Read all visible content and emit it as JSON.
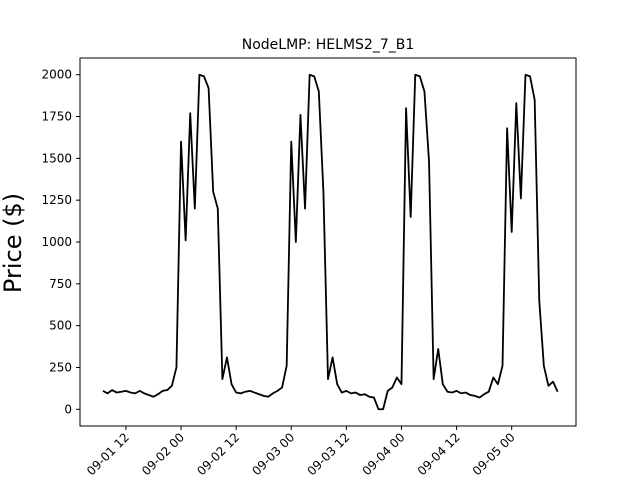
{
  "chart_data": {
    "type": "line",
    "title": "NodeLMP: HELMS2_7_B1",
    "xlabel": "",
    "ylabel": "Price ($)",
    "x_ticks": [
      "09-01 12",
      "09-02 00",
      "09-02 12",
      "09-03 00",
      "09-03 12",
      "09-04 00",
      "09-04 12",
      "09-05 00"
    ],
    "y_ticks": [
      "0",
      "250",
      "500",
      "750",
      "1000",
      "1250",
      "1500",
      "1750",
      "2000"
    ],
    "xlim": [
      "09-01 02",
      "09-05 14"
    ],
    "ylim": [
      -100,
      2100
    ],
    "grid": false,
    "series": [
      {
        "color": "#000000",
        "points": [
          [
            "09-01 07",
            110
          ],
          [
            "09-01 08",
            95
          ],
          [
            "09-01 09",
            115
          ],
          [
            "09-01 10",
            100
          ],
          [
            "09-01 11",
            105
          ],
          [
            "09-01 12",
            110
          ],
          [
            "09-01 13",
            100
          ],
          [
            "09-01 14",
            95
          ],
          [
            "09-01 15",
            110
          ],
          [
            "09-01 16",
            95
          ],
          [
            "09-01 17",
            85
          ],
          [
            "09-01 18",
            75
          ],
          [
            "09-01 19",
            90
          ],
          [
            "09-01 20",
            110
          ],
          [
            "09-01 21",
            115
          ],
          [
            "09-01 22",
            140
          ],
          [
            "09-01 23",
            250
          ],
          [
            "09-01 24",
            1600
          ],
          [
            "09-02 01",
            1010
          ],
          [
            "09-02 02",
            1770
          ],
          [
            "09-02 03",
            1200
          ],
          [
            "09-02 04",
            2000
          ],
          [
            "09-02 05",
            1990
          ],
          [
            "09-02 06",
            1920
          ],
          [
            "09-02 07",
            1300
          ],
          [
            "09-02 08",
            1200
          ],
          [
            "09-02 09",
            180
          ],
          [
            "09-02 10",
            310
          ],
          [
            "09-02 11",
            150
          ],
          [
            "09-02 12",
            100
          ],
          [
            "09-02 13",
            95
          ],
          [
            "09-02 14",
            105
          ],
          [
            "09-02 15",
            110
          ],
          [
            "09-02 16",
            100
          ],
          [
            "09-02 17",
            90
          ],
          [
            "09-02 18",
            80
          ],
          [
            "09-02 19",
            75
          ],
          [
            "09-02 20",
            95
          ],
          [
            "09-02 21",
            110
          ],
          [
            "09-02 22",
            130
          ],
          [
            "09-02 23",
            260
          ],
          [
            "09-02 24",
            1600
          ],
          [
            "09-03 01",
            1000
          ],
          [
            "09-03 02",
            1760
          ],
          [
            "09-03 03",
            1200
          ],
          [
            "09-03 04",
            2000
          ],
          [
            "09-03 05",
            1990
          ],
          [
            "09-03 06",
            1900
          ],
          [
            "09-03 07",
            1300
          ],
          [
            "09-03 08",
            180
          ],
          [
            "09-03 09",
            310
          ],
          [
            "09-03 10",
            150
          ],
          [
            "09-03 11",
            100
          ],
          [
            "09-03 12",
            110
          ],
          [
            "09-03 13",
            95
          ],
          [
            "09-03 14",
            100
          ],
          [
            "09-03 15",
            85
          ],
          [
            "09-03 16",
            90
          ],
          [
            "09-03 17",
            75
          ],
          [
            "09-03 18",
            70
          ],
          [
            "09-03 19",
            0
          ],
          [
            "09-03 20",
            0
          ],
          [
            "09-03 21",
            110
          ],
          [
            "09-03 22",
            130
          ],
          [
            "09-03 23",
            190
          ],
          [
            "09-03 24",
            150
          ],
          [
            "09-04 01",
            1800
          ],
          [
            "09-04 02",
            1150
          ],
          [
            "09-04 03",
            2000
          ],
          [
            "09-04 04",
            1990
          ],
          [
            "09-04 05",
            1900
          ],
          [
            "09-04 06",
            1480
          ],
          [
            "09-04 07",
            180
          ],
          [
            "09-04 08",
            360
          ],
          [
            "09-04 09",
            150
          ],
          [
            "09-04 10",
            105
          ],
          [
            "09-04 11",
            100
          ],
          [
            "09-04 12",
            110
          ],
          [
            "09-04 13",
            95
          ],
          [
            "09-04 14",
            100
          ],
          [
            "09-04 15",
            85
          ],
          [
            "09-04 16",
            80
          ],
          [
            "09-04 17",
            70
          ],
          [
            "09-04 18",
            90
          ],
          [
            "09-04 19",
            105
          ],
          [
            "09-04 20",
            190
          ],
          [
            "09-04 21",
            150
          ],
          [
            "09-04 22",
            260
          ],
          [
            "09-04 23",
            1680
          ],
          [
            "09-04 24",
            1060
          ],
          [
            "09-05 01",
            1830
          ],
          [
            "09-05 02",
            1260
          ],
          [
            "09-05 03",
            2000
          ],
          [
            "09-05 04",
            1990
          ],
          [
            "09-05 05",
            1850
          ],
          [
            "09-05 06",
            650
          ],
          [
            "09-05 07",
            260
          ],
          [
            "09-05 08",
            140
          ],
          [
            "09-05 09",
            165
          ],
          [
            "09-05 10",
            105
          ]
        ]
      }
    ]
  }
}
